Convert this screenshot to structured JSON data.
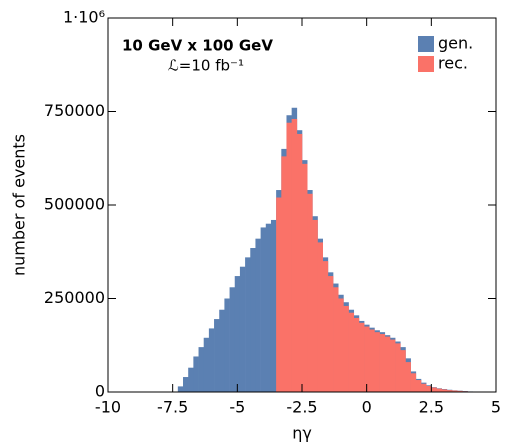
{
  "chart_data": {
    "type": "histogram",
    "x_label": "ηγ",
    "y_label": "number of events",
    "annotations": [
      "10 GeV x 100 GeV",
      "ℒ=10 fb⁻¹"
    ],
    "legend": "upper right",
    "bins": [
      -7.3,
      -7.1,
      -6.9,
      -6.7,
      -6.5,
      -6.3,
      -6.1,
      -5.9,
      -5.7,
      -5.5,
      -5.3,
      -5.1,
      -4.9,
      -4.7,
      -4.5,
      -4.3,
      -4.1,
      -3.9,
      -3.7,
      -3.5,
      -3.3,
      -3.1,
      -2.9,
      -2.7,
      -2.5,
      -2.3,
      -2.1,
      -1.9,
      -1.7,
      -1.5,
      -1.3,
      -1.1,
      -0.9,
      -0.7,
      -0.5,
      -0.3,
      -0.1,
      0.1,
      0.3,
      0.5,
      0.7,
      0.9,
      1.1,
      1.3,
      1.5,
      1.7,
      1.9,
      2.1,
      2.3,
      2.5,
      2.7,
      2.9,
      3.1,
      3.3,
      3.5,
      3.7,
      3.9,
      4.1,
      4.3,
      4.5
    ],
    "series": [
      {
        "name": "gen.",
        "color": "#5b80b2",
        "values": [
          15000,
          40000,
          65000,
          95000,
          120000,
          145000,
          170000,
          195000,
          220000,
          250000,
          280000,
          310000,
          335000,
          360000,
          385000,
          410000,
          440000,
          450000,
          460000,
          540000,
          650000,
          740000,
          760000,
          700000,
          620000,
          540000,
          470000,
          410000,
          360000,
          320000,
          290000,
          260000,
          240000,
          220000,
          205000,
          190000,
          180000,
          172000,
          165000,
          160000,
          152000,
          145000,
          135000,
          120000,
          90000,
          55000,
          35000,
          25000,
          18000,
          13000,
          10000,
          8000,
          6000,
          4500,
          3500,
          2500,
          1500,
          800,
          300
        ]
      },
      {
        "name": "rec.",
        "color": "#fa7268",
        "values": [
          0,
          0,
          0,
          0,
          0,
          0,
          0,
          0,
          0,
          0,
          0,
          0,
          0,
          0,
          0,
          0,
          0,
          0,
          0,
          520000,
          630000,
          720000,
          730000,
          690000,
          610000,
          530000,
          460000,
          400000,
          350000,
          310000,
          280000,
          250000,
          230000,
          212000,
          198000,
          185000,
          175000,
          167000,
          160000,
          155000,
          148000,
          140000,
          130000,
          112000,
          80000,
          50000,
          32000,
          22000,
          16000,
          12000,
          9000,
          7000,
          5000,
          4000,
          3000,
          2000,
          1200,
          600,
          200
        ]
      }
    ],
    "xlim": [
      -10,
      5
    ],
    "xticks": [
      -10,
      -7.5,
      -5,
      -2.5,
      0,
      2.5,
      5
    ],
    "ylim": [
      0,
      1000000
    ],
    "yticks": [
      0,
      250000,
      500000,
      750000,
      {
        "value": 1000000,
        "label": "1·10⁶"
      }
    ]
  }
}
